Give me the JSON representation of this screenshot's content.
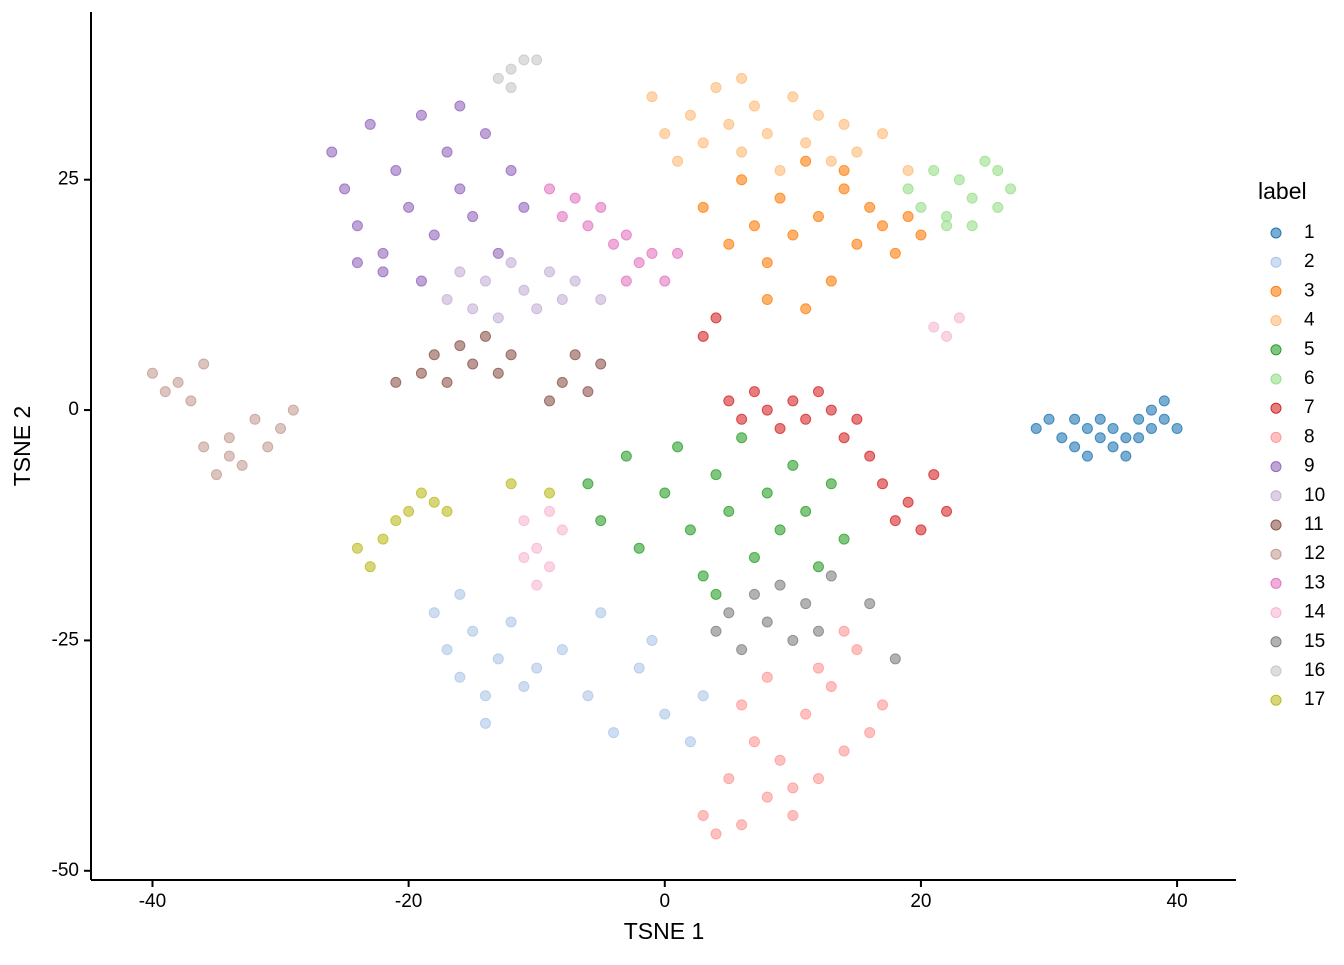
{
  "chart_data": {
    "type": "scatter",
    "x_label": "TSNE 1",
    "y_label": "TSNE 2",
    "legend_title": "label",
    "legend_position": "right",
    "xlim": [
      -44.8,
      44.6
    ],
    "ylim": [
      -51,
      43.2
    ],
    "xticks": [
      -40,
      -20,
      0,
      20,
      40
    ],
    "yticks": [
      -50,
      -25,
      0,
      25
    ],
    "grid": false,
    "series": [
      {
        "name": "1",
        "color": "#1f77b4",
        "x": [
          29,
          30,
          31,
          32,
          32,
          33,
          33,
          34,
          34,
          35,
          35,
          36,
          36,
          37,
          37,
          38,
          38,
          39,
          39,
          40
        ],
        "y": [
          -2,
          -1,
          -3,
          -1,
          -4,
          -2,
          -5,
          -3,
          -1,
          -4,
          -2,
          -5,
          -3,
          -1,
          -3,
          0,
          -2,
          -1,
          1,
          -2
        ]
      },
      {
        "name": "2",
        "color": "#aec7e8",
        "x": [
          -18,
          -17,
          -16,
          -15,
          -14,
          -13,
          -12,
          -11,
          -10,
          -16,
          -14,
          -8,
          -6,
          -4,
          -2,
          0,
          2,
          3,
          -5,
          -1
        ],
        "y": [
          -22,
          -26,
          -29,
          -24,
          -31,
          -27,
          -23,
          -30,
          -28,
          -20,
          -34,
          -26,
          -31,
          -35,
          -28,
          -33,
          -36,
          -31,
          -22,
          -25
        ]
      },
      {
        "name": "3",
        "color": "#ff7f0e",
        "x": [
          3,
          5,
          6,
          7,
          8,
          9,
          10,
          11,
          12,
          13,
          14,
          15,
          16,
          17,
          18,
          19,
          20,
          8,
          11,
          14
        ],
        "y": [
          22,
          18,
          25,
          20,
          16,
          23,
          19,
          27,
          21,
          14,
          24,
          18,
          22,
          20,
          17,
          21,
          19,
          12,
          11,
          26
        ]
      },
      {
        "name": "4",
        "color": "#ffbb78",
        "x": [
          -1,
          0,
          1,
          2,
          3,
          4,
          5,
          6,
          7,
          8,
          9,
          10,
          11,
          12,
          13,
          14,
          15,
          17,
          19,
          6
        ],
        "y": [
          34,
          30,
          27,
          32,
          29,
          35,
          31,
          28,
          33,
          30,
          26,
          34,
          29,
          32,
          27,
          31,
          28,
          30,
          26,
          36
        ]
      },
      {
        "name": "5",
        "color": "#2ca02c",
        "x": [
          -6,
          -5,
          -3,
          -2,
          0,
          1,
          2,
          3,
          4,
          5,
          6,
          7,
          8,
          9,
          10,
          11,
          12,
          13,
          14,
          4
        ],
        "y": [
          -8,
          -12,
          -5,
          -15,
          -9,
          -4,
          -13,
          -18,
          -7,
          -11,
          -3,
          -16,
          -9,
          -13,
          -6,
          -11,
          -17,
          -8,
          -14,
          -20
        ]
      },
      {
        "name": "6",
        "color": "#98df8a",
        "x": [
          19,
          20,
          21,
          22,
          23,
          24,
          25,
          26,
          27,
          22,
          24,
          26
        ],
        "y": [
          24,
          22,
          26,
          21,
          25,
          23,
          27,
          22,
          24,
          20,
          20,
          26
        ]
      },
      {
        "name": "7",
        "color": "#d62728",
        "x": [
          3,
          4,
          5,
          6,
          7,
          8,
          9,
          10,
          11,
          12,
          13,
          14,
          15,
          16,
          17,
          18,
          19,
          20,
          21,
          22
        ],
        "y": [
          8,
          10,
          1,
          -1,
          2,
          0,
          -2,
          1,
          -1,
          2,
          0,
          -3,
          -1,
          -5,
          -8,
          -12,
          -10,
          -13,
          -7,
          -11
        ]
      },
      {
        "name": "8",
        "color": "#ff9896",
        "x": [
          3,
          4,
          5,
          6,
          7,
          8,
          9,
          10,
          11,
          12,
          13,
          14,
          15,
          16,
          17,
          8,
          10,
          12,
          14,
          6
        ],
        "y": [
          -44,
          -46,
          -40,
          -45,
          -36,
          -42,
          -38,
          -44,
          -33,
          -40,
          -30,
          -37,
          -26,
          -35,
          -32,
          -29,
          -41,
          -28,
          -24,
          -32
        ]
      },
      {
        "name": "9",
        "color": "#9467bd",
        "x": [
          -26,
          -25,
          -24,
          -23,
          -22,
          -21,
          -20,
          -19,
          -18,
          -17,
          -16,
          -15,
          -14,
          -13,
          -12,
          -11,
          -22,
          -19,
          -16,
          -24
        ],
        "y": [
          28,
          24,
          20,
          31,
          17,
          26,
          22,
          32,
          19,
          28,
          24,
          21,
          30,
          17,
          26,
          22,
          15,
          14,
          33,
          16
        ]
      },
      {
        "name": "10",
        "color": "#c5b0d5",
        "x": [
          -17,
          -16,
          -15,
          -14,
          -13,
          -12,
          -11,
          -10,
          -9,
          -8,
          -7,
          -5
        ],
        "y": [
          12,
          15,
          11,
          14,
          10,
          16,
          13,
          11,
          15,
          12,
          14,
          12
        ]
      },
      {
        "name": "11",
        "color": "#8c564b",
        "x": [
          -21,
          -19,
          -18,
          -17,
          -16,
          -15,
          -14,
          -13,
          -12,
          -8,
          -7,
          -6,
          -5,
          -9
        ],
        "y": [
          3,
          4,
          6,
          3,
          7,
          5,
          8,
          4,
          6,
          3,
          6,
          2,
          5,
          1
        ]
      },
      {
        "name": "12",
        "color": "#c49c94",
        "x": [
          -40,
          -39,
          -38,
          -37,
          -36,
          -35,
          -34,
          -33,
          -32,
          -31,
          -30,
          -36,
          -34,
          -29
        ],
        "y": [
          4,
          2,
          3,
          1,
          -4,
          -7,
          -3,
          -6,
          -1,
          -4,
          -2,
          5,
          -5,
          0
        ]
      },
      {
        "name": "13",
        "color": "#e377c2",
        "x": [
          -9,
          -8,
          -7,
          -6,
          -5,
          -4,
          -3,
          -2,
          -1,
          0,
          -3,
          1
        ],
        "y": [
          24,
          21,
          23,
          20,
          22,
          18,
          19,
          16,
          17,
          14,
          14,
          17
        ]
      },
      {
        "name": "14",
        "color": "#f7b6d2",
        "x": [
          -11,
          -10,
          -9,
          -8,
          -10,
          -9,
          -11,
          21,
          22,
          23
        ],
        "y": [
          -12,
          -15,
          -17,
          -13,
          -19,
          -11,
          -16,
          9,
          8,
          10
        ]
      },
      {
        "name": "15",
        "color": "#7f7f7f",
        "x": [
          4,
          5,
          6,
          7,
          8,
          9,
          10,
          11,
          12,
          13,
          16,
          18
        ],
        "y": [
          -24,
          -22,
          -26,
          -20,
          -23,
          -19,
          -25,
          -21,
          -24,
          -18,
          -21,
          -27
        ]
      },
      {
        "name": "16",
        "color": "#c7c7c7",
        "x": [
          -13,
          -12,
          -11,
          -10,
          -12
        ],
        "y": [
          36,
          37,
          38,
          38,
          35
        ]
      },
      {
        "name": "17",
        "color": "#bcbd22",
        "x": [
          -24,
          -23,
          -22,
          -21,
          -20,
          -19,
          -18,
          -17,
          -12,
          -9
        ],
        "y": [
          -15,
          -17,
          -14,
          -12,
          -11,
          -9,
          -10,
          -11,
          -8,
          -9
        ]
      }
    ]
  }
}
